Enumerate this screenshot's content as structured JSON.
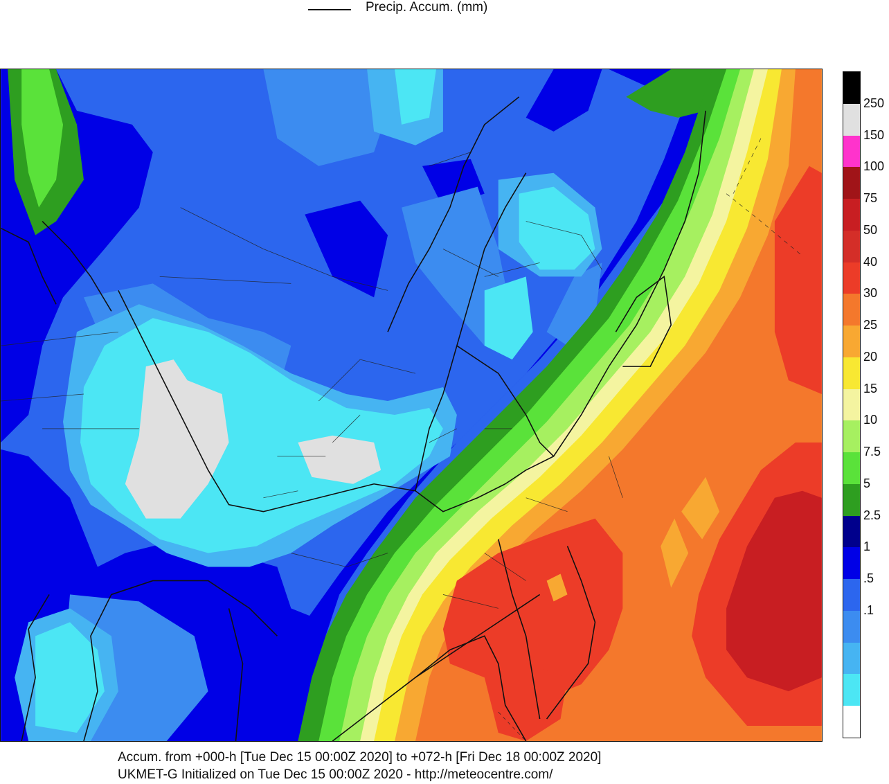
{
  "header": {
    "legend_line_label": "Precip. Accum. (mm)"
  },
  "colorbar": {
    "colors": [
      "#000000",
      "#e0e0e0",
      "#ff33cc",
      "#a01418",
      "#c81e22",
      "#d42e28",
      "#ec3c28",
      "#f4782c",
      "#f8a832",
      "#f8e832",
      "#f4f4a0",
      "#a6f060",
      "#5ae23a",
      "#2e9e20",
      "#00008c",
      "#0000e6",
      "#2c66ee",
      "#3c8cf0",
      "#46b4f2",
      "#4ce6f4",
      "#ffffff"
    ],
    "labels": [
      "250",
      "150",
      "100",
      "75",
      "50",
      "40",
      "30",
      "25",
      "20",
      "15",
      "10",
      "7.5",
      "5",
      "2.5",
      "1",
      ".5",
      ".1"
    ]
  },
  "footer": {
    "line1": "Accum. from +000-h [Tue Dec 15 00:00Z 2020] to +072-h [Fri Dec 18 00:00Z 2020]",
    "line2": "UKMET-G Initialized on Tue Dec 15 00:00Z 2020 - http://meteocentre.com/"
  }
}
